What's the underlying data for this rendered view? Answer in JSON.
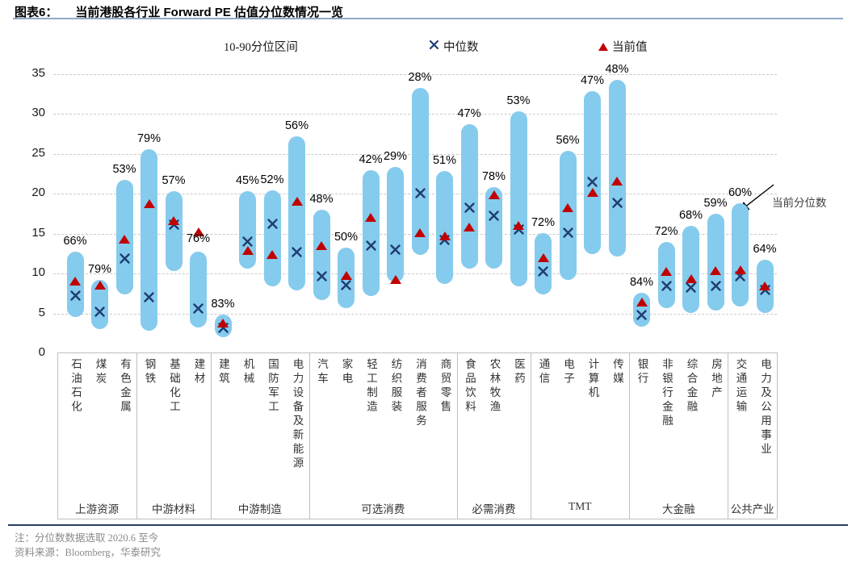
{
  "header": {
    "figure_label": "图表6：",
    "title": "当前港股各行业 Forward PE 估值分位数情况一览"
  },
  "legend": {
    "range_label": "10-90分位区间",
    "median_label": "中位数",
    "current_label": "当前值"
  },
  "annotation": {
    "label": "当前分位数"
  },
  "footer": {
    "note": "注：分位数数据选取 2020.6 至今",
    "source": "资料来源：Bloomberg，华泰研究"
  },
  "colors": {
    "bar": "#85CBED",
    "median": "#1F3D70",
    "current": "#C00000",
    "title_rule": "#8FA9C8",
    "bottom_rule": "#263E63",
    "grid": "#C9C9C9",
    "note_text": "#8A8A8A"
  },
  "chart_data": {
    "type": "range-bar",
    "title": "当前港股各行业 Forward PE 估值分位数情况一览",
    "ylabel": "Forward PE",
    "ylim": [
      0,
      35
    ],
    "y_ticks": [
      0,
      5,
      10,
      15,
      20,
      25,
      30,
      35
    ],
    "grid": "dashed-horizontal",
    "legend_position": "top",
    "series_legend": [
      "10-90分位区间",
      "中位数",
      "当前值"
    ],
    "groups": [
      {
        "label": "上游资源",
        "from": 0,
        "to": 2
      },
      {
        "label": "中游材料",
        "from": 3,
        "to": 5
      },
      {
        "label": "中游制造",
        "from": 6,
        "to": 9
      },
      {
        "label": "可选消费",
        "from": 10,
        "to": 15
      },
      {
        "label": "必需消费",
        "from": 16,
        "to": 18
      },
      {
        "label": "TMT",
        "from": 19,
        "to": 22
      },
      {
        "label": "大金融",
        "from": 23,
        "to": 26
      },
      {
        "label": "公共产业",
        "from": 27,
        "to": 28
      }
    ],
    "industries": [
      {
        "name": "石油石化",
        "group": "上游资源",
        "percentile": "66%",
        "p10": 4.5,
        "p90": 12.7,
        "median": 7.2,
        "current": 9.0
      },
      {
        "name": "煤炭",
        "group": "上游资源",
        "percentile": "79%",
        "p10": 3.0,
        "p90": 9.2,
        "median": 5.2,
        "current": 8.5
      },
      {
        "name": "有色金属",
        "group": "上游资源",
        "percentile": "53%",
        "p10": 7.4,
        "p90": 21.7,
        "median": 11.9,
        "current": 14.2
      },
      {
        "name": "钢铁",
        "group": "中游材料",
        "percentile": "79%",
        "p10": 2.8,
        "p90": 25.6,
        "median": 7.0,
        "current": 18.7
      },
      {
        "name": "基础化工",
        "group": "中游材料",
        "percentile": "57%",
        "p10": 10.3,
        "p90": 20.3,
        "median": 16.1,
        "current": 16.6
      },
      {
        "name": "建材",
        "group": "中游材料",
        "percentile": "76%",
        "p10": 3.2,
        "p90": 12.7,
        "median": 5.6,
        "current": 15.2,
        "label_y": 14.2
      },
      {
        "name": "建筑",
        "group": "中游制造",
        "percentile": "83%",
        "p10": 2.0,
        "p90": 4.8,
        "median": 3.2,
        "current": 3.7
      },
      {
        "name": "机械",
        "group": "中游制造",
        "percentile": "45%",
        "p10": 10.6,
        "p90": 20.3,
        "median": 14.0,
        "current": 12.8
      },
      {
        "name": "国防军工",
        "group": "中游制造",
        "percentile": "52%",
        "p10": 8.4,
        "p90": 20.4,
        "median": 16.2,
        "current": 12.3
      },
      {
        "name": "电力设备及新能源",
        "group": "中游制造",
        "percentile": "56%",
        "p10": 7.9,
        "p90": 27.2,
        "median": 12.7,
        "current": 19.0
      },
      {
        "name": "汽车",
        "group": "可选消费",
        "percentile": "48%",
        "p10": 6.7,
        "p90": 18.0,
        "median": 9.6,
        "current": 13.4
      },
      {
        "name": "家电",
        "group": "可选消费",
        "percentile": "50%",
        "p10": 5.7,
        "p90": 13.2,
        "median": 8.5,
        "current": 9.7
      },
      {
        "name": "轻工制造",
        "group": "可选消费",
        "percentile": "42%",
        "p10": 7.2,
        "p90": 22.9,
        "median": 13.5,
        "current": 17.0
      },
      {
        "name": "纺织服装",
        "group": "可选消费",
        "percentile": "29%",
        "p10": 8.9,
        "p90": 23.3,
        "median": 13.0,
        "current": 9.2
      },
      {
        "name": "消费者服务",
        "group": "可选消费",
        "percentile": "28%",
        "p10": 12.3,
        "p90": 33.2,
        "median": 20.1,
        "current": 15.1
      },
      {
        "name": "商贸零售",
        "group": "可选消费",
        "percentile": "51%",
        "p10": 8.7,
        "p90": 22.8,
        "median": 14.2,
        "current": 14.6
      },
      {
        "name": "食品饮料",
        "group": "必需消费",
        "percentile": "47%",
        "p10": 10.6,
        "p90": 28.7,
        "median": 18.2,
        "current": 15.8
      },
      {
        "name": "农林牧渔",
        "group": "必需消费",
        "percentile": "78%",
        "p10": 10.6,
        "p90": 20.8,
        "median": 17.2,
        "current": 19.8
      },
      {
        "name": "医药",
        "group": "必需消费",
        "percentile": "53%",
        "p10": 8.4,
        "p90": 30.3,
        "median": 15.5,
        "current": 16.0
      },
      {
        "name": "通信",
        "group": "TMT",
        "percentile": "72%",
        "p10": 7.4,
        "p90": 15.1,
        "median": 10.3,
        "current": 11.9
      },
      {
        "name": "电子",
        "group": "TMT",
        "percentile": "56%",
        "p10": 9.2,
        "p90": 25.4,
        "median": 15.1,
        "current": 18.2
      },
      {
        "name": "计算机",
        "group": "TMT",
        "percentile": "47%",
        "p10": 12.4,
        "p90": 32.8,
        "median": 21.5,
        "current": 20.1
      },
      {
        "name": "传媒",
        "group": "TMT",
        "percentile": "48%",
        "p10": 12.1,
        "p90": 34.2,
        "median": 18.8,
        "current": 21.5
      },
      {
        "name": "银行",
        "group": "大金融",
        "percentile": "84%",
        "p10": 3.3,
        "p90": 7.6,
        "median": 4.8,
        "current": 6.4
      },
      {
        "name": "非银行金融",
        "group": "大金融",
        "percentile": "72%",
        "p10": 5.7,
        "p90": 13.9,
        "median": 8.4,
        "current": 10.2
      },
      {
        "name": "综合金融",
        "group": "大金融",
        "percentile": "68%",
        "p10": 5.0,
        "p90": 16.0,
        "median": 8.2,
        "current": 9.3
      },
      {
        "name": "房地产",
        "group": "大金融",
        "percentile": "59%",
        "p10": 5.4,
        "p90": 17.5,
        "median": 8.4,
        "current": 10.3
      },
      {
        "name": "交通运输",
        "group": "公共产业",
        "percentile": "60%",
        "p10": 5.9,
        "p90": 18.8,
        "median": 9.6,
        "current": 10.4
      },
      {
        "name": "电力及公用事业",
        "group": "公共产业",
        "percentile": "64%",
        "p10": 5.0,
        "p90": 11.7,
        "median": 7.9,
        "current": 8.4
      }
    ]
  }
}
